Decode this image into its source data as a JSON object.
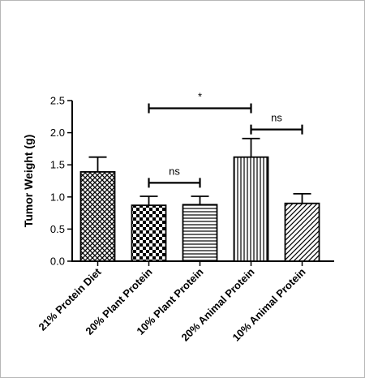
{
  "chart_data": {
    "type": "bar",
    "ylabel": "Tumor Weight (g)",
    "ylim": [
      0,
      2.5
    ],
    "yticks": [
      0.0,
      0.5,
      1.0,
      1.5,
      2.0,
      2.5
    ],
    "ytick_labels": [
      "0.0",
      "0.5",
      "1.0",
      "1.5",
      "2.0",
      "2.5"
    ],
    "categories": [
      "21% Protein Diet",
      "20% Plant Protein",
      "10% Plant Protein",
      "20% Animal Protein",
      "10% Animal Protein"
    ],
    "values": [
      1.39,
      0.87,
      0.88,
      1.62,
      0.9
    ],
    "errors": [
      0.23,
      0.14,
      0.13,
      0.29,
      0.15
    ],
    "patterns": [
      "crosshatch",
      "checker",
      "horizontal",
      "vertical",
      "diagonal"
    ],
    "significance": [
      {
        "from": 1,
        "to": 3,
        "label": "*",
        "y": 2.38
      },
      {
        "from": 1,
        "to": 2,
        "label": "ns",
        "y": 1.22
      },
      {
        "from": 3,
        "to": 4,
        "label": "ns",
        "y": 2.05
      }
    ],
    "grid": false,
    "legend": "none"
  }
}
